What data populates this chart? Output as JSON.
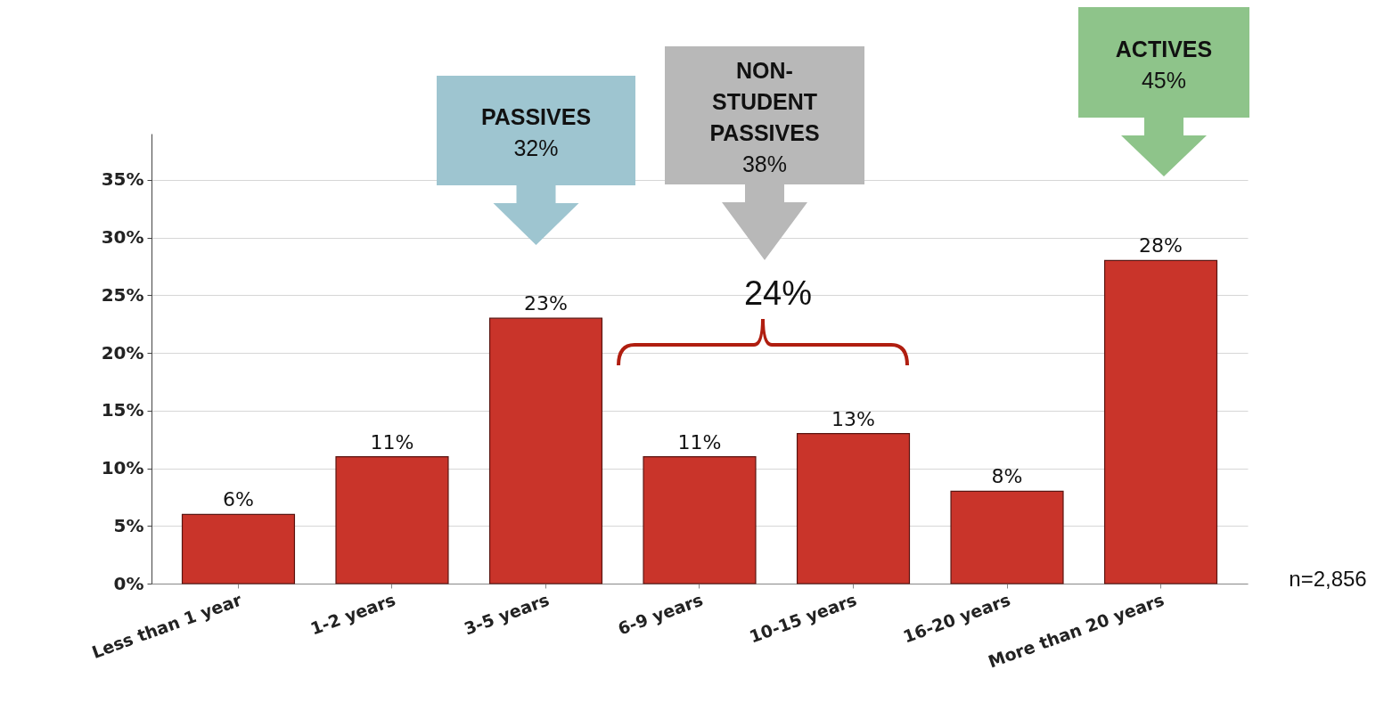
{
  "chart_data": {
    "type": "bar",
    "categories": [
      "Less than 1 year",
      "1-2 years",
      "3-5 years",
      "6-9 years",
      "10-15 years",
      "16-20 years",
      "More than 20 years"
    ],
    "values": [
      6,
      11,
      23,
      11,
      13,
      8,
      28
    ],
    "color": "#c9342a",
    "value_labels": [
      "6%",
      "11%",
      "23%",
      "11%",
      "13%",
      "8%",
      "28%"
    ],
    "ylim": [
      0,
      39
    ],
    "yticks": [
      {
        "value": 0,
        "label": "0%"
      },
      {
        "value": 5,
        "label": "5%"
      },
      {
        "value": 10,
        "label": "10%"
      },
      {
        "value": 15,
        "label": "15%"
      },
      {
        "value": 20,
        "label": "20%"
      },
      {
        "value": 25,
        "label": "25%"
      },
      {
        "value": 30,
        "label": "30%"
      },
      {
        "value": 35,
        "label": "35%"
      }
    ],
    "grid": "y",
    "annotations": [
      "PASSIVES\n32%",
      "NON-\nSTUDENT\nPASSIVES\n38%",
      "ACTIVES\n45%",
      "24%",
      "n=2,856"
    ]
  }
}
